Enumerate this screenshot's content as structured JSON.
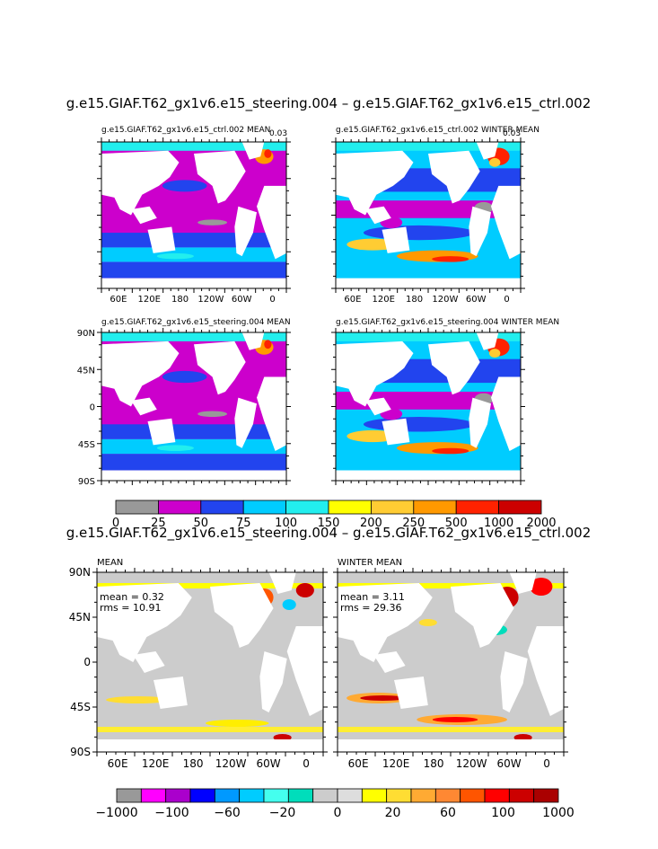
{
  "figure": {
    "title_top": "g.e15.GIAF.T62_gx1v6.e15_steering.004 – g.e15.GIAF.T62_gx1v6.e15_ctrl.002",
    "title_diff": "g.e15.GIAF.T62_gx1v6.e15_steering.004 – g.e15.GIAF.T62_gx1v6.e15_ctrl.002"
  },
  "panels": {
    "p1": {
      "title": "g.e15.GIAF.T62_gx1v6.e15_ctrl.002 MEAN",
      "overtext": "0.03"
    },
    "p2": {
      "title": "g.e15.GIAF.T62_gx1v6.e15_ctrl.002 WINTER MEAN",
      "overtext": "0.03"
    },
    "p3": {
      "title": "g.e15.GIAF.T62_gx1v6.e15_steering.004 MEAN"
    },
    "p4": {
      "title": "g.e15.GIAF.T62_gx1v6.e15_steering.004 WINTER MEAN"
    },
    "p5": {
      "title": "MEAN",
      "mean": "mean = 0.32",
      "rms": "rms = 10.91"
    },
    "p6": {
      "title": "WINTER MEAN",
      "mean": "mean = 3.11",
      "rms": "rms = 29.36"
    }
  },
  "axes": {
    "lon_ticks": [
      "60E",
      "120E",
      "180",
      "120W",
      "60W",
      "0"
    ],
    "lat_ticks": [
      "90N",
      "45N",
      "0",
      "45S",
      "90S"
    ]
  },
  "colorbar1": {
    "labels": [
      "0",
      "25",
      "50",
      "75",
      "100",
      "150",
      "200",
      "250",
      "500",
      "1000",
      "2000"
    ],
    "colors": [
      "#999999",
      "#cc00cc",
      "#2244ee",
      "#00ccff",
      "#22eeee",
      "#ffff00",
      "#ffcc33",
      "#ff9900",
      "#ff2200",
      "#cc0000"
    ]
  },
  "colorbar2": {
    "labels": [
      "−1000",
      "−100",
      "−60",
      "−20",
      "0",
      "20",
      "60",
      "100",
      "1000"
    ],
    "colors": [
      "#999999",
      "#ff00ff",
      "#aa00cc",
      "#0000ff",
      "#0099ff",
      "#00ccff",
      "#44ffee",
      "#00ddbb",
      "#cccccc",
      "#dddddd",
      "#ffff00",
      "#ffdd33",
      "#ffaa33",
      "#ff8833",
      "#ff5500",
      "#ff0000",
      "#cc0000",
      "#aa0000"
    ]
  },
  "chart_data": [
    {
      "type": "heatmap",
      "title": "g.e15.GIAF.T62_gx1v6.e15_ctrl.002 MEAN",
      "xlabel": "",
      "ylabel": "",
      "x_ticks": [
        "60E",
        "120E",
        "180",
        "120W",
        "60W",
        "0"
      ],
      "colorbar_levels": [
        0,
        25,
        50,
        75,
        100,
        150,
        200,
        250,
        500,
        1000,
        2000
      ]
    },
    {
      "type": "heatmap",
      "title": "g.e15.GIAF.T62_gx1v6.e15_ctrl.002 WINTER MEAN",
      "x_ticks": [
        "60E",
        "120E",
        "180",
        "120W",
        "60W",
        "0"
      ],
      "colorbar_levels": [
        0,
        25,
        50,
        75,
        100,
        150,
        200,
        250,
        500,
        1000,
        2000
      ]
    },
    {
      "type": "heatmap",
      "title": "g.e15.GIAF.T62_gx1v6.e15_steering.004 MEAN",
      "x_ticks": [
        "60E",
        "120E",
        "180",
        "120W",
        "60W",
        "0"
      ],
      "y_ticks": [
        "90N",
        "45N",
        "0",
        "45S",
        "90S"
      ]
    },
    {
      "type": "heatmap",
      "title": "g.e15.GIAF.T62_gx1v6.e15_steering.004 WINTER MEAN",
      "x_ticks": [
        "60E",
        "120E",
        "180",
        "120W",
        "60W",
        "0"
      ]
    },
    {
      "type": "heatmap",
      "title": "MEAN",
      "annotations": [
        "mean = 0.32",
        "rms = 10.91"
      ],
      "x_ticks": [
        "60E",
        "120E",
        "180",
        "120W",
        "60W",
        "0"
      ],
      "y_ticks": [
        "90N",
        "45N",
        "0",
        "45S",
        "90S"
      ],
      "colorbar_levels": [
        -1000,
        -100,
        -60,
        -20,
        0,
        20,
        60,
        100,
        1000
      ]
    },
    {
      "type": "heatmap",
      "title": "WINTER MEAN",
      "annotations": [
        "mean = 3.11",
        "rms = 29.36"
      ],
      "x_ticks": [
        "60E",
        "120E",
        "180",
        "120W",
        "60W",
        "0"
      ]
    }
  ]
}
